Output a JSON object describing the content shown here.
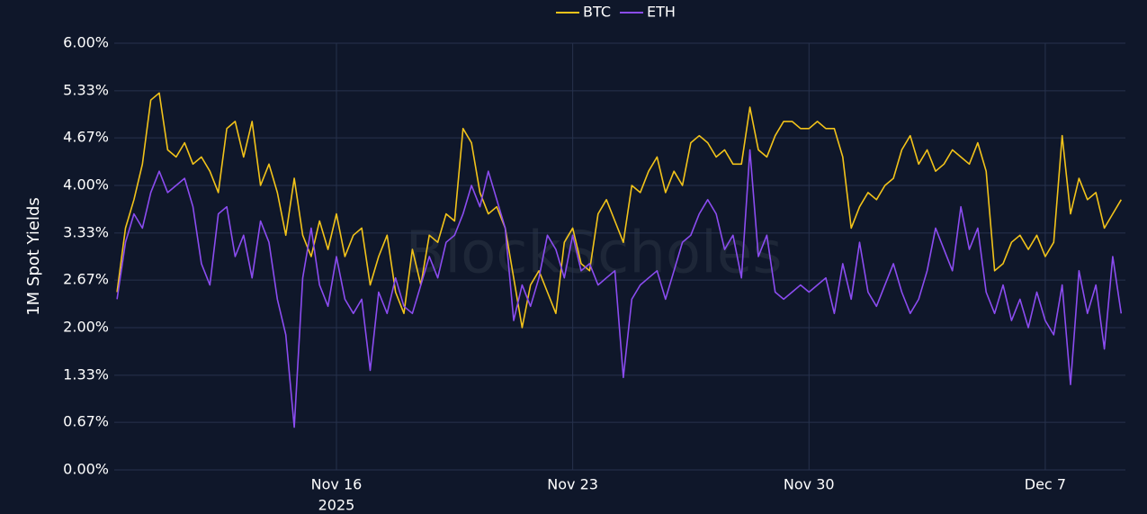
{
  "chart_data": {
    "type": "line",
    "y_axis_label": "1M Spot Yields",
    "watermark": "BlockScholes",
    "legend": "top",
    "grid": true,
    "xlim": [
      "2025-11-09T10:00",
      "2025-12-09T09:00"
    ],
    "xticks": [
      {
        "value": "2025-11-16T00:00",
        "label": "Nov 16"
      },
      {
        "value": "2025-11-23T00:00",
        "label": "Nov 23"
      },
      {
        "value": "2025-11-30T00:00",
        "label": "Nov 30"
      },
      {
        "value": "2025-12-07T00:00",
        "label": "Dec 7"
      }
    ],
    "xtick_year_label": "2025",
    "ylim": [
      0,
      6
    ],
    "yticks": [
      {
        "value": 0,
        "label": "0.00%"
      },
      {
        "value": 0.67,
        "label": "0.67%"
      },
      {
        "value": 1.33,
        "label": "1.33%"
      },
      {
        "value": 2,
        "label": "2.00%"
      },
      {
        "value": 2.67,
        "label": "2.67%"
      },
      {
        "value": 3.33,
        "label": "3.33%"
      },
      {
        "value": 4,
        "label": "4.00%"
      },
      {
        "value": 4.67,
        "label": "4.67%"
      },
      {
        "value": 5.33,
        "label": "5.33%"
      },
      {
        "value": 6,
        "label": "6.00%"
      }
    ],
    "x": [
      "2025-11-09T12:00",
      "2025-11-09T18:00",
      "2025-11-10T00:00",
      "2025-11-10T06:00",
      "2025-11-10T12:00",
      "2025-11-10T18:00",
      "2025-11-11T00:00",
      "2025-11-11T06:00",
      "2025-11-11T12:00",
      "2025-11-11T18:00",
      "2025-11-12T00:00",
      "2025-11-12T06:00",
      "2025-11-12T12:00",
      "2025-11-12T18:00",
      "2025-11-13T00:00",
      "2025-11-13T06:00",
      "2025-11-13T12:00",
      "2025-11-13T18:00",
      "2025-11-14T00:00",
      "2025-11-14T06:00",
      "2025-11-14T12:00",
      "2025-11-14T18:00",
      "2025-11-15T00:00",
      "2025-11-15T06:00",
      "2025-11-15T12:00",
      "2025-11-15T18:00",
      "2025-11-16T00:00",
      "2025-11-16T06:00",
      "2025-11-16T12:00",
      "2025-11-16T18:00",
      "2025-11-17T00:00",
      "2025-11-17T06:00",
      "2025-11-17T12:00",
      "2025-11-17T18:00",
      "2025-11-18T00:00",
      "2025-11-18T06:00",
      "2025-11-18T12:00",
      "2025-11-18T18:00",
      "2025-11-19T00:00",
      "2025-11-19T06:00",
      "2025-11-19T12:00",
      "2025-11-19T18:00",
      "2025-11-20T00:00",
      "2025-11-20T06:00",
      "2025-11-20T12:00",
      "2025-11-20T18:00",
      "2025-11-21T00:00",
      "2025-11-21T06:00",
      "2025-11-21T12:00",
      "2025-11-21T18:00",
      "2025-11-22T00:00",
      "2025-11-22T06:00",
      "2025-11-22T12:00",
      "2025-11-22T18:00",
      "2025-11-23T00:00",
      "2025-11-23T06:00",
      "2025-11-23T12:00",
      "2025-11-23T18:00",
      "2025-11-24T00:00",
      "2025-11-24T06:00",
      "2025-11-24T12:00",
      "2025-11-24T18:00",
      "2025-11-25T00:00",
      "2025-11-25T06:00",
      "2025-11-25T12:00",
      "2025-11-25T18:00",
      "2025-11-26T00:00",
      "2025-11-26T06:00",
      "2025-11-26T12:00",
      "2025-11-26T18:00",
      "2025-11-27T00:00",
      "2025-11-27T06:00",
      "2025-11-27T12:00",
      "2025-11-27T18:00",
      "2025-11-28T00:00",
      "2025-11-28T06:00",
      "2025-11-28T12:00",
      "2025-11-28T18:00",
      "2025-11-29T00:00",
      "2025-11-29T06:00",
      "2025-11-29T12:00",
      "2025-11-29T18:00",
      "2025-11-30T00:00",
      "2025-11-30T06:00",
      "2025-11-30T12:00",
      "2025-11-30T18:00",
      "2025-12-01T00:00",
      "2025-12-01T06:00",
      "2025-12-01T12:00",
      "2025-12-01T18:00",
      "2025-12-02T00:00",
      "2025-12-02T06:00",
      "2025-12-02T12:00",
      "2025-12-02T18:00",
      "2025-12-03T00:00",
      "2025-12-03T06:00",
      "2025-12-03T12:00",
      "2025-12-03T18:00",
      "2025-12-04T00:00",
      "2025-12-04T06:00",
      "2025-12-04T12:00",
      "2025-12-04T18:00",
      "2025-12-05T00:00",
      "2025-12-05T06:00",
      "2025-12-05T12:00",
      "2025-12-05T18:00",
      "2025-12-06T00:00",
      "2025-12-06T06:00",
      "2025-12-06T12:00",
      "2025-12-06T18:00",
      "2025-12-07T00:00",
      "2025-12-07T06:00",
      "2025-12-07T12:00",
      "2025-12-07T18:00",
      "2025-12-08T00:00",
      "2025-12-08T06:00",
      "2025-12-08T12:00",
      "2025-12-08T18:00",
      "2025-12-09T00:00",
      "2025-12-09T06:00"
    ],
    "series": [
      {
        "name": "BTC",
        "color": "#f2c31a",
        "values": [
          2.5,
          3.4,
          3.8,
          4.3,
          5.2,
          5.3,
          4.5,
          4.4,
          4.6,
          4.3,
          4.4,
          4.2,
          3.9,
          4.8,
          4.9,
          4.4,
          4.9,
          4.0,
          4.3,
          3.9,
          3.3,
          4.1,
          3.3,
          3.0,
          3.5,
          3.1,
          3.6,
          3.0,
          3.3,
          3.4,
          2.6,
          3.0,
          3.3,
          2.5,
          2.2,
          3.1,
          2.6,
          3.3,
          3.2,
          3.6,
          3.5,
          4.8,
          4.6,
          3.9,
          3.6,
          3.7,
          3.4,
          2.7,
          2.0,
          2.6,
          2.8,
          2.5,
          2.2,
          3.2,
          3.4,
          2.9,
          2.8,
          3.6,
          3.8,
          3.5,
          3.2,
          4.0,
          3.9,
          4.2,
          4.4,
          3.9,
          4.2,
          4.0,
          4.6,
          4.7,
          4.6,
          4.4,
          4.5,
          4.3,
          4.3,
          5.1,
          4.5,
          4.4,
          4.7,
          4.9,
          4.9,
          4.8,
          4.8,
          4.9,
          4.8,
          4.8,
          4.4,
          3.4,
          3.7,
          3.9,
          3.8,
          4.0,
          4.1,
          4.5,
          4.7,
          4.3,
          4.5,
          4.2,
          4.3,
          4.5,
          4.4,
          4.3,
          4.6,
          4.2,
          2.8,
          2.9,
          3.2,
          3.3,
          3.1,
          3.3,
          3.0,
          3.2,
          4.7,
          3.6,
          4.1,
          3.8,
          3.9,
          3.4,
          3.6,
          3.8
        ]
      },
      {
        "name": "ETH",
        "color": "#8b4cf0",
        "values": [
          2.4,
          3.2,
          3.6,
          3.4,
          3.9,
          4.2,
          3.9,
          4.0,
          4.1,
          3.7,
          2.9,
          2.6,
          3.6,
          3.7,
          3.0,
          3.3,
          2.7,
          3.5,
          3.2,
          2.4,
          1.9,
          0.6,
          2.7,
          3.4,
          2.6,
          2.3,
          3.0,
          2.4,
          2.2,
          2.4,
          1.4,
          2.5,
          2.2,
          2.7,
          2.3,
          2.2,
          2.6,
          3.0,
          2.7,
          3.2,
          3.3,
          3.6,
          4.0,
          3.7,
          4.2,
          3.8,
          3.4,
          2.1,
          2.6,
          2.3,
          2.7,
          3.3,
          3.1,
          2.7,
          3.3,
          2.8,
          2.9,
          2.6,
          2.7,
          2.8,
          1.3,
          2.4,
          2.6,
          2.7,
          2.8,
          2.4,
          2.8,
          3.2,
          3.3,
          3.6,
          3.8,
          3.6,
          3.1,
          3.3,
          2.7,
          4.5,
          3.0,
          3.3,
          2.5,
          2.4,
          2.5,
          2.6,
          2.5,
          2.6,
          2.7,
          2.2,
          2.9,
          2.4,
          3.2,
          2.5,
          2.3,
          2.6,
          2.9,
          2.5,
          2.2,
          2.4,
          2.8,
          3.4,
          3.1,
          2.8,
          3.7,
          3.1,
          3.4,
          2.5,
          2.2,
          2.6,
          2.1,
          2.4,
          2.0,
          2.5,
          2.1,
          1.9,
          2.6,
          1.2,
          2.8,
          2.2,
          2.6,
          1.7,
          3.0,
          2.2
        ]
      }
    ]
  }
}
